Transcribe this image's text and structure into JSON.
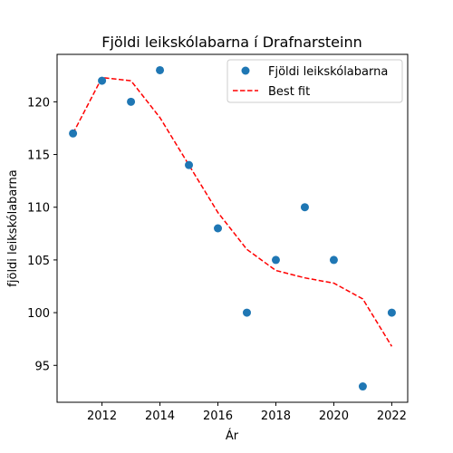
{
  "chart_data": {
    "type": "scatter",
    "title": "Fjöldi leikskólabarna í Drafnarsteinn",
    "xlabel": "Ár",
    "ylabel": "fjöldi leikskólabarna",
    "xlim": [
      2010.45,
      2022.55
    ],
    "ylim": [
      91.5,
      124.5
    ],
    "x_ticks": [
      2012,
      2014,
      2016,
      2018,
      2020,
      2022
    ],
    "y_ticks": [
      95,
      100,
      105,
      110,
      115,
      120
    ],
    "grid": false,
    "legend_position": "top-right",
    "series": [
      {
        "name": "Fjöldi leikskólabarna",
        "kind": "scatter",
        "color": "#1f77b4",
        "x": [
          2011,
          2012,
          2013,
          2014,
          2015,
          2016,
          2017,
          2018,
          2019,
          2020,
          2021,
          2022
        ],
        "values": [
          117,
          122,
          120,
          123,
          114,
          108,
          100,
          105,
          110,
          105,
          93,
          100
        ]
      },
      {
        "name": "Best fit",
        "kind": "line",
        "style": "dashed",
        "color": "#ff0000",
        "x": [
          2011,
          2012,
          2013,
          2014,
          2015,
          2016,
          2017,
          2018,
          2019,
          2020,
          2021,
          2022
        ],
        "values": [
          117,
          122.3,
          122,
          118.5,
          114,
          109.5,
          106,
          104,
          103.3,
          102.8,
          101.3,
          96.8
        ]
      }
    ]
  }
}
